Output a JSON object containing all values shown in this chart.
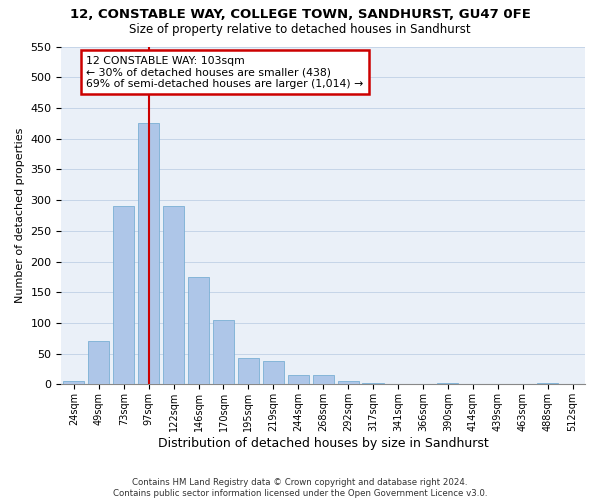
{
  "title1": "12, CONSTABLE WAY, COLLEGE TOWN, SANDHURST, GU47 0FE",
  "title2": "Size of property relative to detached houses in Sandhurst",
  "xlabel": "Distribution of detached houses by size in Sandhurst",
  "ylabel": "Number of detached properties",
  "bar_color": "#aec6e8",
  "bar_edge_color": "#7aafd4",
  "annotation_line_color": "#cc0000",
  "annotation_box_color": "#cc0000",
  "annotation_text": "12 CONSTABLE WAY: 103sqm\n← 30% of detached houses are smaller (438)\n69% of semi-detached houses are larger (1,014) →",
  "categories": [
    "24sqm",
    "49sqm",
    "73sqm",
    "97sqm",
    "122sqm",
    "146sqm",
    "170sqm",
    "195sqm",
    "219sqm",
    "244sqm",
    "268sqm",
    "292sqm",
    "317sqm",
    "341sqm",
    "366sqm",
    "390sqm",
    "414sqm",
    "439sqm",
    "463sqm",
    "488sqm",
    "512sqm"
  ],
  "values": [
    5,
    70,
    290,
    425,
    290,
    175,
    105,
    43,
    38,
    16,
    16,
    6,
    2,
    0,
    0,
    2,
    0,
    0,
    0,
    2,
    0
  ],
  "ylim": [
    0,
    550
  ],
  "yticks": [
    0,
    50,
    100,
    150,
    200,
    250,
    300,
    350,
    400,
    450,
    500,
    550
  ],
  "vline_x_idx": 3,
  "footnote": "Contains HM Land Registry data © Crown copyright and database right 2024.\nContains public sector information licensed under the Open Government Licence v3.0.",
  "plot_bg_color": "#eaf0f8",
  "grid_color": "#c5d5e8"
}
